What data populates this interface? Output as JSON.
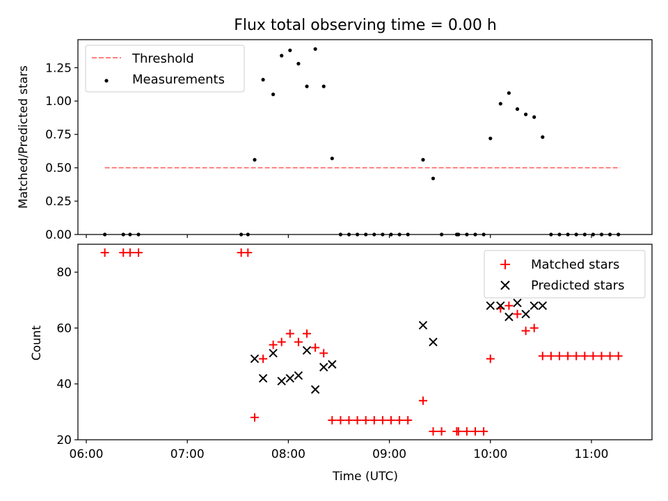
{
  "figure": {
    "title": "Flux total observing time = 0.00 h"
  },
  "chart_data": [
    {
      "type": "scatter",
      "panel": "top",
      "title": "Flux total observing time = 0.00 h",
      "xlabel": "",
      "ylabel": "Matched/Predicted stars",
      "xlim": [
        "06:00",
        "11:31"
      ],
      "ylim": [
        0,
        1.46
      ],
      "yticks": [
        0.0,
        0.25,
        0.5,
        0.75,
        1.0,
        1.25
      ],
      "ytick_labels": [
        "0.00",
        "0.25",
        "0.50",
        "0.75",
        "1.00",
        "1.25"
      ],
      "legend": {
        "placement": "top-left",
        "entries": [
          "Threshold",
          "Measurements"
        ]
      },
      "series": [
        {
          "name": "Threshold",
          "style": "dashed-line",
          "color": "#ff7f7f",
          "x": [
            "06:11",
            "11:17"
          ],
          "y": [
            0.5,
            0.5
          ]
        },
        {
          "name": "Measurements",
          "style": "dot",
          "color": "#000000",
          "points": [
            [
              "06:11",
              0
            ],
            [
              "06:22",
              0
            ],
            [
              "06:26",
              0
            ],
            [
              "06:31",
              0
            ],
            [
              "07:32",
              0
            ],
            [
              "07:36",
              0
            ],
            [
              "07:40",
              0.56
            ],
            [
              "07:45",
              1.16
            ],
            [
              "07:51",
              1.05
            ],
            [
              "07:56",
              1.34
            ],
            [
              "08:01",
              1.38
            ],
            [
              "08:06",
              1.28
            ],
            [
              "08:11",
              1.11
            ],
            [
              "08:16",
              1.39
            ],
            [
              "08:21",
              1.11
            ],
            [
              "08:26",
              0.57
            ],
            [
              "08:31",
              0
            ],
            [
              "08:36",
              0
            ],
            [
              "08:41",
              0
            ],
            [
              "08:46",
              0
            ],
            [
              "08:51",
              0
            ],
            [
              "08:56",
              0
            ],
            [
              "09:01",
              0
            ],
            [
              "09:06",
              0
            ],
            [
              "09:11",
              0
            ],
            [
              "09:20",
              0.56
            ],
            [
              "09:26",
              0.42
            ],
            [
              "09:31",
              0
            ],
            [
              "09:40",
              0
            ],
            [
              "09:41",
              0
            ],
            [
              "09:46",
              0
            ],
            [
              "09:51",
              0
            ],
            [
              "09:56",
              0
            ],
            [
              "10:00",
              0.72
            ],
            [
              "10:06",
              0.98
            ],
            [
              "10:11",
              1.06
            ],
            [
              "10:16",
              0.94
            ],
            [
              "10:21",
              0.9
            ],
            [
              "10:26",
              0.88
            ],
            [
              "10:31",
              0.73
            ],
            [
              "10:36",
              0
            ],
            [
              "10:41",
              0
            ],
            [
              "10:46",
              0
            ],
            [
              "10:51",
              0
            ],
            [
              "10:56",
              0
            ],
            [
              "11:01",
              0
            ],
            [
              "11:06",
              0
            ],
            [
              "11:11",
              0
            ],
            [
              "11:16",
              0
            ]
          ]
        }
      ]
    },
    {
      "type": "scatter",
      "panel": "bottom",
      "xlabel": "Time (UTC)",
      "ylabel": "Count",
      "xlim": [
        "06:00",
        "11:31"
      ],
      "ylim": [
        20,
        90
      ],
      "yticks": [
        20,
        40,
        60,
        80
      ],
      "xticks": [
        "06:00",
        "07:00",
        "08:00",
        "09:00",
        "10:00",
        "11:00"
      ],
      "legend": {
        "placement": "top-right",
        "entries": [
          "Matched stars",
          "Predicted stars"
        ]
      },
      "series": [
        {
          "name": "Matched stars",
          "marker": "plus",
          "color": "#ff0000",
          "points": [
            [
              "06:11",
              87
            ],
            [
              "06:22",
              87
            ],
            [
              "06:26",
              87
            ],
            [
              "06:31",
              87
            ],
            [
              "07:32",
              87
            ],
            [
              "07:36",
              87
            ],
            [
              "07:40",
              28
            ],
            [
              "07:45",
              49
            ],
            [
              "07:51",
              54
            ],
            [
              "07:56",
              55
            ],
            [
              "08:01",
              58
            ],
            [
              "08:06",
              55
            ],
            [
              "08:11",
              58
            ],
            [
              "08:16",
              53
            ],
            [
              "08:21",
              51
            ],
            [
              "08:26",
              27
            ],
            [
              "08:31",
              27
            ],
            [
              "08:36",
              27
            ],
            [
              "08:41",
              27
            ],
            [
              "08:46",
              27
            ],
            [
              "08:51",
              27
            ],
            [
              "08:56",
              27
            ],
            [
              "09:01",
              27
            ],
            [
              "09:06",
              27
            ],
            [
              "09:11",
              27
            ],
            [
              "09:20",
              34
            ],
            [
              "09:26",
              23
            ],
            [
              "09:31",
              23
            ],
            [
              "09:40",
              23
            ],
            [
              "09:41",
              23
            ],
            [
              "09:46",
              23
            ],
            [
              "09:51",
              23
            ],
            [
              "09:56",
              23
            ],
            [
              "10:00",
              49
            ],
            [
              "10:06",
              67
            ],
            [
              "10:11",
              68
            ],
            [
              "10:16",
              65
            ],
            [
              "10:21",
              59
            ],
            [
              "10:26",
              60
            ],
            [
              "10:31",
              50
            ],
            [
              "10:36",
              50
            ],
            [
              "10:41",
              50
            ],
            [
              "10:46",
              50
            ],
            [
              "10:51",
              50
            ],
            [
              "10:56",
              50
            ],
            [
              "11:01",
              50
            ],
            [
              "11:06",
              50
            ],
            [
              "11:11",
              50
            ],
            [
              "11:16",
              50
            ]
          ]
        },
        {
          "name": "Predicted stars",
          "marker": "x",
          "color": "#000000",
          "points": [
            [
              "07:40",
              49
            ],
            [
              "07:45",
              42
            ],
            [
              "07:51",
              51
            ],
            [
              "07:56",
              41
            ],
            [
              "08:01",
              42
            ],
            [
              "08:06",
              43
            ],
            [
              "08:11",
              52
            ],
            [
              "08:16",
              38
            ],
            [
              "08:21",
              46
            ],
            [
              "08:26",
              47
            ],
            [
              "09:20",
              61
            ],
            [
              "09:26",
              55
            ],
            [
              "10:00",
              68
            ],
            [
              "10:06",
              68
            ],
            [
              "10:11",
              64
            ],
            [
              "10:16",
              69
            ],
            [
              "10:21",
              65
            ],
            [
              "10:26",
              68
            ],
            [
              "10:31",
              68
            ]
          ]
        }
      ]
    }
  ]
}
